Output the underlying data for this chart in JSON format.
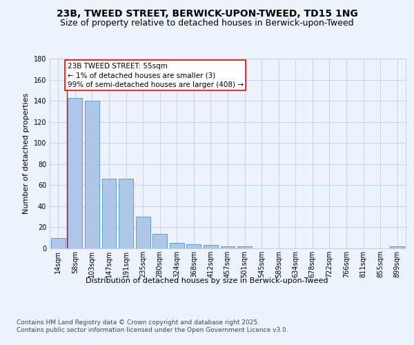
{
  "title_line1": "23B, TWEED STREET, BERWICK-UPON-TWEED, TD15 1NG",
  "title_line2": "Size of property relative to detached houses in Berwick-upon-Tweed",
  "xlabel": "Distribution of detached houses by size in Berwick-upon-Tweed",
  "ylabel": "Number of detached properties",
  "categories": [
    "14sqm",
    "58sqm",
    "103sqm",
    "147sqm",
    "191sqm",
    "235sqm",
    "280sqm",
    "324sqm",
    "368sqm",
    "412sqm",
    "457sqm",
    "501sqm",
    "545sqm",
    "589sqm",
    "634sqm",
    "678sqm",
    "722sqm",
    "766sqm",
    "811sqm",
    "855sqm",
    "899sqm"
  ],
  "values": [
    10,
    143,
    140,
    66,
    66,
    30,
    14,
    5,
    4,
    3,
    2,
    2,
    0,
    0,
    0,
    0,
    0,
    0,
    0,
    0,
    2
  ],
  "bar_color": "#aec6e8",
  "bar_edge_color": "#5a9fd4",
  "annotation_box_text": "23B TWEED STREET: 55sqm\n← 1% of detached houses are smaller (3)\n99% of semi-detached houses are larger (408) →",
  "ylim": [
    0,
    180
  ],
  "yticks": [
    0,
    20,
    40,
    60,
    80,
    100,
    120,
    140,
    160,
    180
  ],
  "background_color": "#eef2fb",
  "footer_line1": "Contains HM Land Registry data © Crown copyright and database right 2025.",
  "footer_line2": "Contains public sector information licensed under the Open Government Licence v3.0.",
  "title_fontsize": 10,
  "subtitle_fontsize": 9,
  "axis_label_fontsize": 8,
  "tick_fontsize": 7,
  "annotation_fontsize": 7.5,
  "footer_fontsize": 6.5
}
